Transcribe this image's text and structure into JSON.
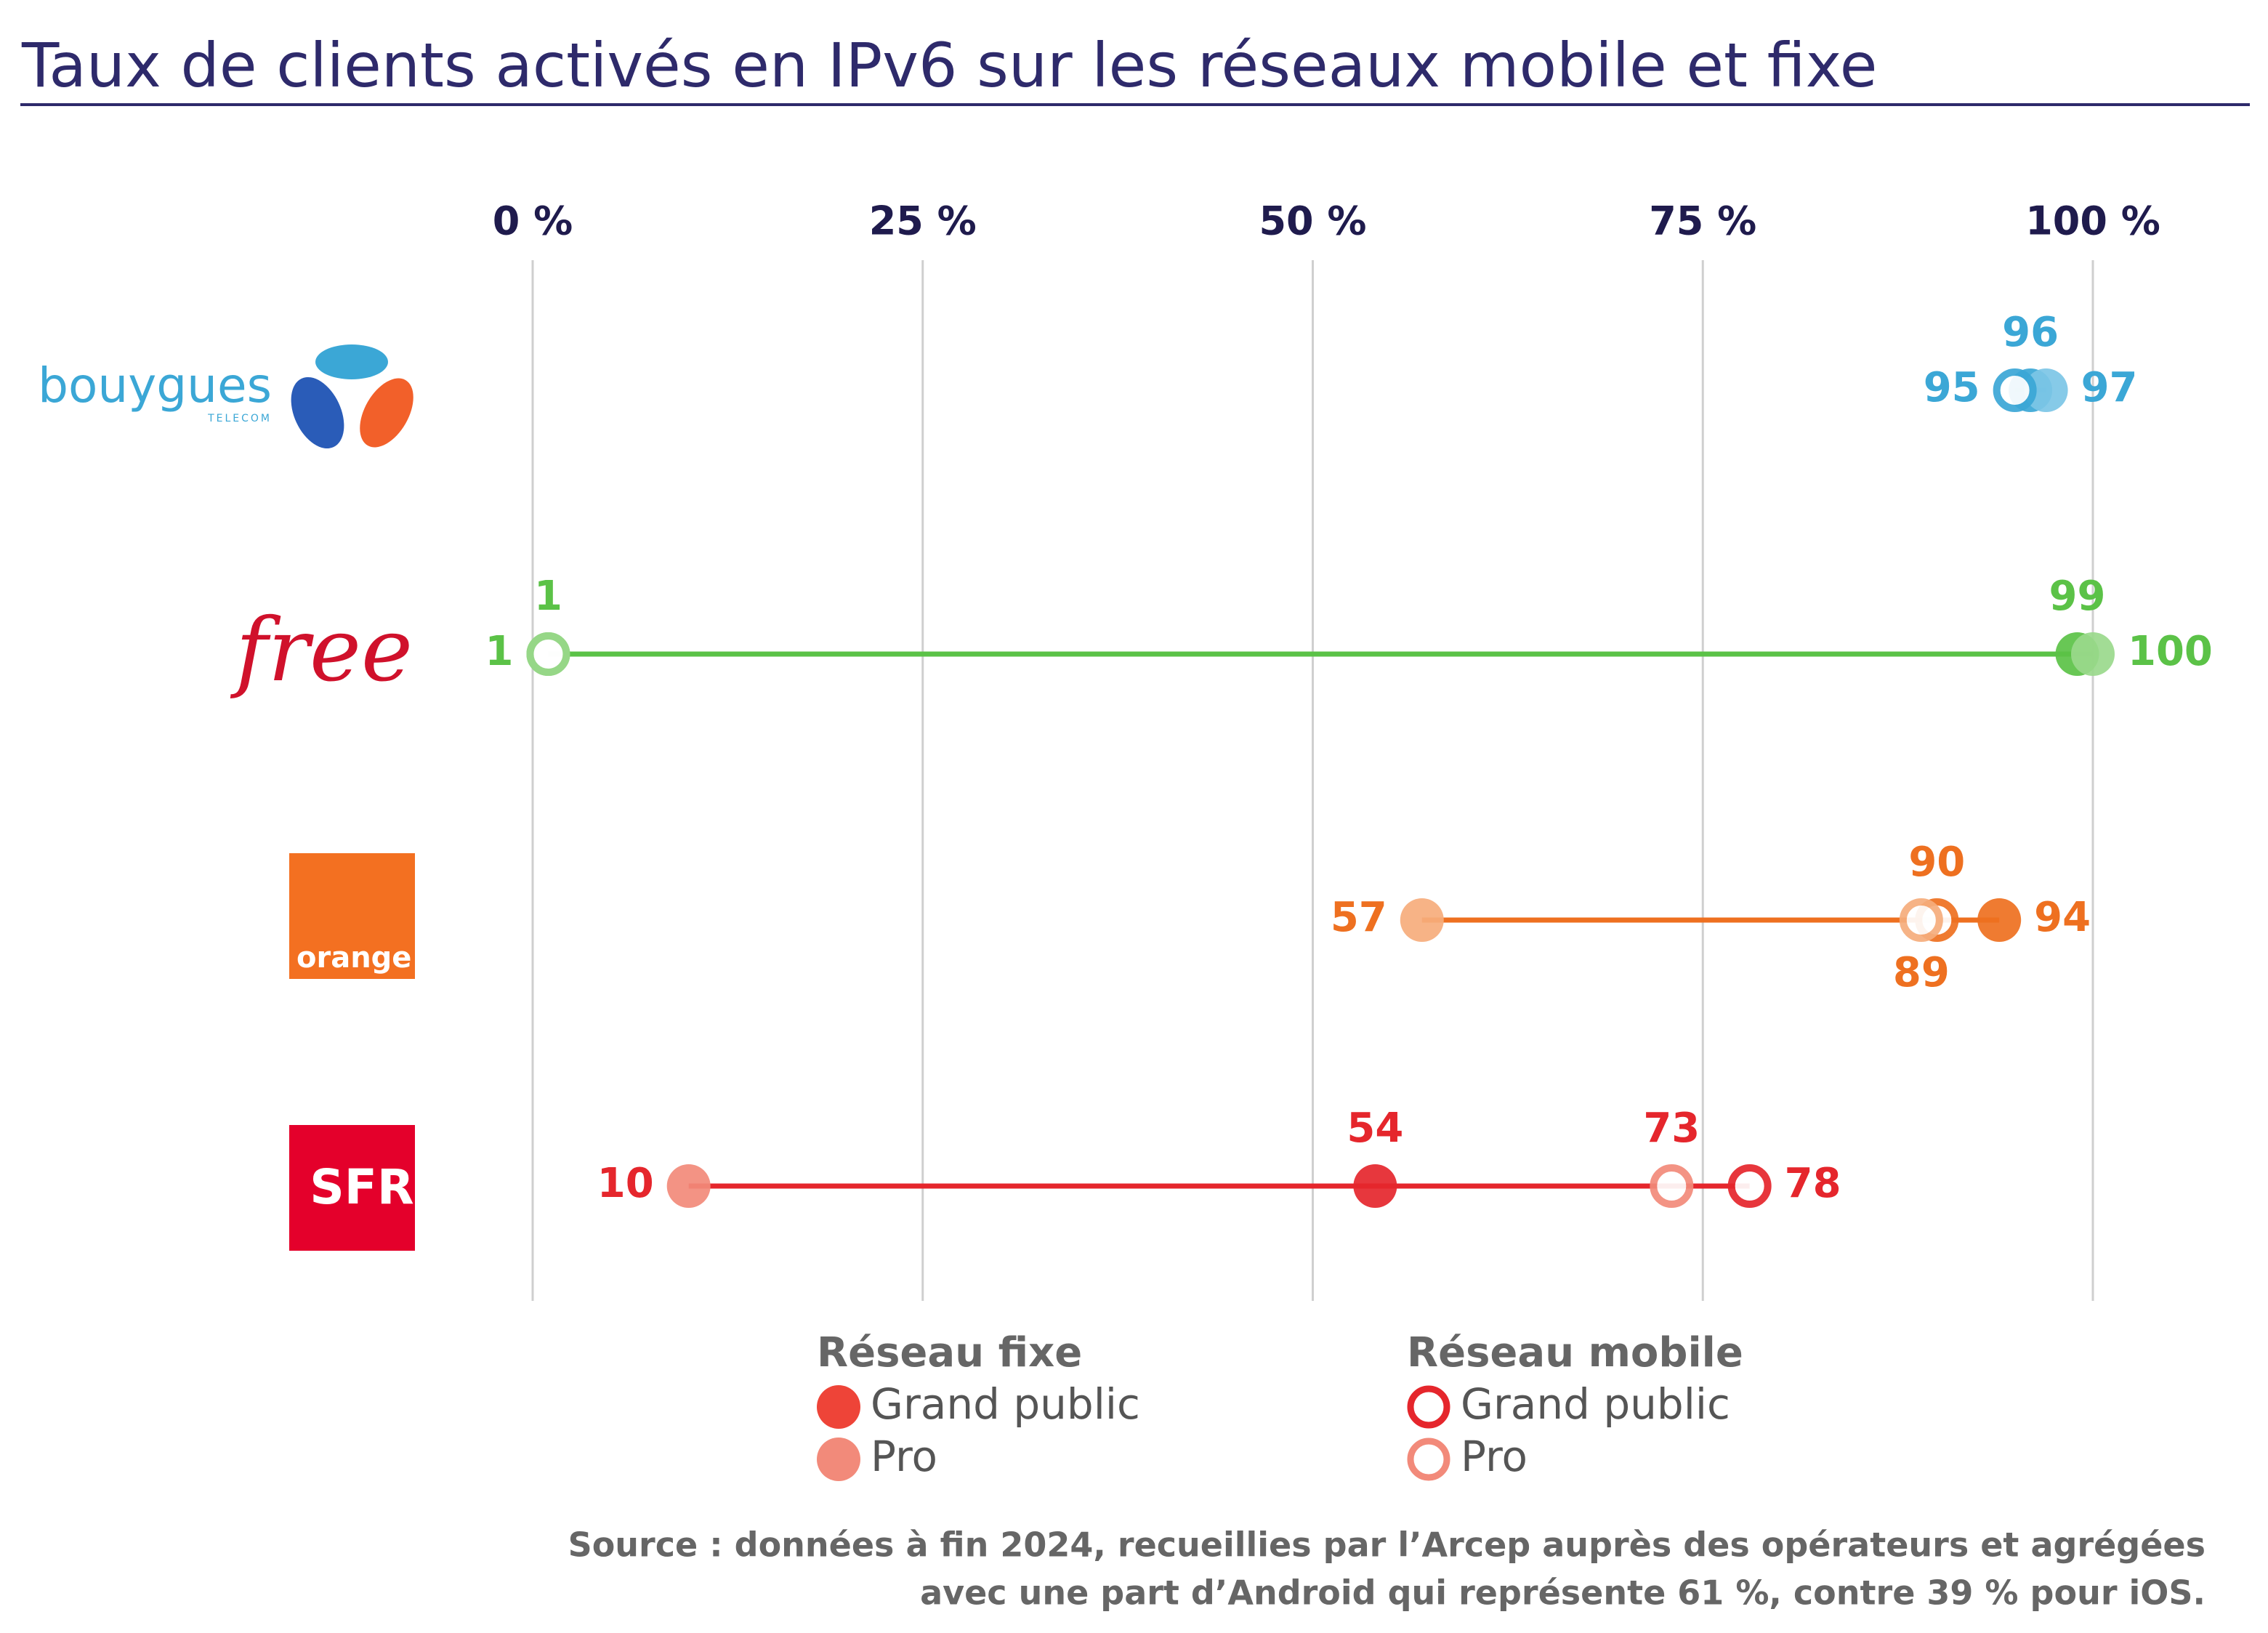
{
  "chart_data": {
    "type": "dot",
    "title": "Taux de clients activés en IPv6 sur les réseaux mobile et fixe",
    "categories": [
      "bouygues",
      "free",
      "orange",
      "SFR"
    ],
    "category_sublabels": [
      "TELECOM",
      null,
      null,
      null
    ],
    "category_colors": [
      {
        "dark": "#3ba7d6",
        "light": "#7cc6e6"
      },
      {
        "dark": "#5bc247",
        "light": "#9ad98c"
      },
      {
        "dark": "#ee7020",
        "light": "#f6ad7c"
      },
      {
        "dark": "#e5262c",
        "light": "#f28a7a"
      }
    ],
    "legend_groups": [
      "Réseau fixe",
      "Réseau mobile"
    ],
    "series": [
      {
        "name": "Grand public",
        "group": 0,
        "marker": "filled",
        "shade": "dark",
        "color": "#ee4438",
        "values": [
          96,
          99,
          94,
          54
        ]
      },
      {
        "name": "Pro",
        "group": 0,
        "marker": "filled",
        "shade": "light",
        "color": "#f28a7a",
        "values": [
          97,
          100,
          57,
          10
        ]
      },
      {
        "name": "Grand public",
        "group": 1,
        "marker": "open",
        "shade": "dark",
        "color": "#e5262c",
        "values": [
          95,
          1,
          90,
          78
        ]
      },
      {
        "name": "Pro",
        "group": 1,
        "marker": "open",
        "shade": "light",
        "color": "#f28a7a",
        "values": [
          null,
          1,
          89,
          73
        ]
      }
    ],
    "xlim": [
      0,
      100
    ],
    "xticks": [
      {
        "value": 0,
        "label": "0 %"
      },
      {
        "value": 25,
        "label": "25 %"
      },
      {
        "value": 50,
        "label": "50 %"
      },
      {
        "value": 75,
        "label": "75 %"
      },
      {
        "value": 100,
        "label": "100 %"
      }
    ],
    "grid": true,
    "source_lines": [
      "Source : données à fin 2024, recueillies par l’Arcep auprès des opérateurs et agrégées",
      "avec une part d’Android qui représente 61 %, contre 39 % pour iOS."
    ]
  }
}
